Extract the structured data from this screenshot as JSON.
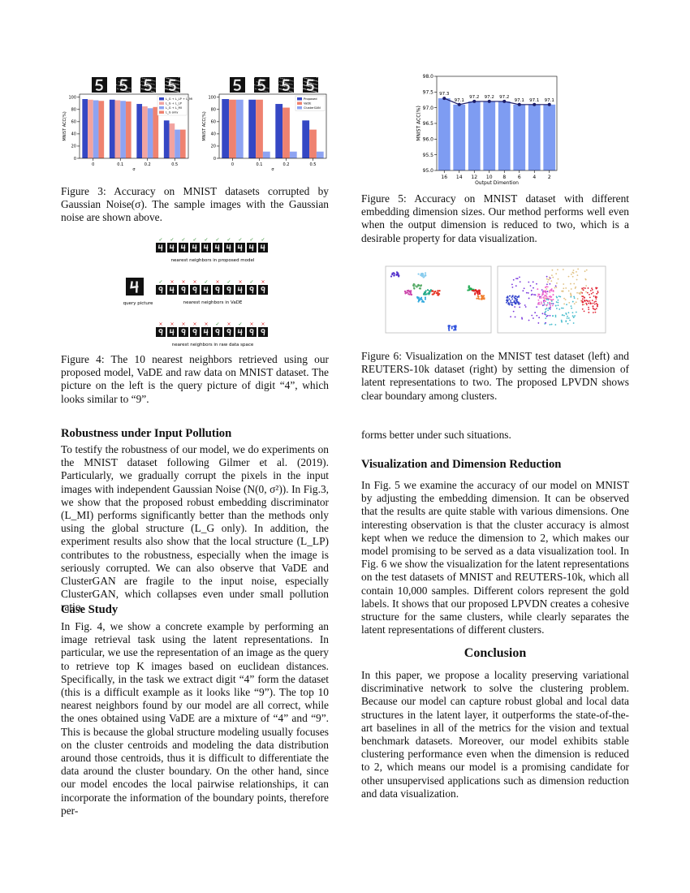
{
  "chart_data": [
    {
      "type": "bar",
      "ylabel": "MNIST ACC(%)",
      "xlabel": "σ",
      "categories": [
        "0",
        "0.1",
        "0.2",
        "0.5"
      ],
      "ylim": [
        0,
        105
      ],
      "yticks": [
        0,
        20,
        40,
        60,
        80,
        100
      ],
      "legend": "upper right",
      "series": [
        {
          "name": "L_G + L_LP + L_MI",
          "color": "#3547c4",
          "values": [
            97,
            96,
            89,
            62
          ]
        },
        {
          "name": "L_G + L_LP",
          "color": "#f2a3a0",
          "values": [
            96,
            95,
            85,
            57
          ]
        },
        {
          "name": "L_G + L_MI",
          "color": "#8ea3f2",
          "values": [
            95,
            94,
            82,
            47
          ]
        },
        {
          "name": "L_G only",
          "color": "#ef8270",
          "values": [
            94,
            93,
            84,
            47
          ]
        }
      ]
    },
    {
      "type": "bar",
      "ylabel": "MNIST ACC(%)",
      "xlabel": "σ",
      "categories": [
        "0",
        "0.1",
        "0.2",
        "0.5"
      ],
      "ylim": [
        0,
        105
      ],
      "yticks": [
        0,
        20,
        40,
        60,
        80,
        100
      ],
      "legend": "upper right",
      "series": [
        {
          "name": "Proposed",
          "color": "#3547c4",
          "values": [
            97,
            96,
            89,
            62
          ]
        },
        {
          "name": "VaDE",
          "color": "#ef8270",
          "values": [
            96,
            96,
            83,
            47
          ]
        },
        {
          "name": "ClusterGAN",
          "color": "#8ea3f2",
          "values": [
            96,
            11,
            11,
            11
          ]
        }
      ]
    },
    {
      "type": "bar",
      "line": true,
      "line_color": "#1a1a66",
      "ylabel": "MNIST ACC(%)",
      "xlabel": "Output Dimention",
      "categories": [
        "16",
        "14",
        "12",
        "10",
        "8",
        "6",
        "4",
        "2"
      ],
      "ylim": [
        95,
        98
      ],
      "yticks": [
        {
          "value": 95,
          "label": "95.0"
        },
        {
          "value": 95.5,
          "label": "95.5"
        },
        {
          "value": 96,
          "label": "96.0"
        },
        {
          "value": 96.5,
          "label": "96.5"
        },
        {
          "value": 97,
          "label": "97.0"
        },
        {
          "value": 97.5,
          "label": "97.5"
        },
        {
          "value": 98,
          "label": "98.0"
        }
      ],
      "series": [
        {
          "name": null,
          "color": "#7e9cf2",
          "values": [
            97.3,
            97.1,
            97.2,
            97.2,
            97.2,
            97.1,
            97.1,
            97.1
          ]
        }
      ]
    }
  ],
  "figure4": {
    "query_label": "query picture",
    "rows": [
      {
        "label": "nearest neighbors in proposed model",
        "marks": [
          "✓",
          "✓",
          "✓",
          "✓",
          "✓",
          "✓",
          "✓",
          "✓",
          "✓",
          "✓"
        ]
      },
      {
        "label": "nearest neighbors in VaDE",
        "marks": [
          "✓",
          "×",
          "×",
          "×",
          "✓",
          "×",
          "✓",
          "×",
          "✓",
          "×"
        ]
      },
      {
        "label": "nearest neighbors in raw data space",
        "marks": [
          "×",
          "×",
          "×",
          "×",
          "×",
          "✓",
          "×",
          "✓",
          "×",
          "×"
        ]
      }
    ]
  },
  "captions": {
    "fig3": "Figure 3: Accuracy on MNIST datasets corrupted by Gaussian Noise(σ). The sample images with the Gaussian noise are shown above.",
    "fig4": "Figure 4: The 10 nearest neighbors retrieved using our proposed model, VaDE and raw data on MNIST dataset. The picture on the left is the query picture of digit “4”, which looks similar to “9”.",
    "fig5": "Figure 5: Accuracy on MNIST dataset with different embedding dimension sizes. Our method performs well even when the output dimension is reduced to two, which is a desirable property for data visualization.",
    "fig6": "Figure 6: Visualization on the MNIST test dataset (left) and REUTERS-10k dataset (right) by setting the dimension of latent representations to two. The proposed LPVDN shows clear boundary among clusters."
  },
  "sections": [
    {
      "heading": "Robustness under Input Pollution",
      "text": "To testify the robustness of our model, we do experiments on the MNIST dataset following Gilmer et al. (2019). Particularly, we gradually corrupt the pixels in the input images with independent Gaussian Noise (N(0, σ²)). In Fig.3, we show that the proposed robust embedding discriminator (L_MI) performs significantly better than the methods only using the global structure (L_G only). In addition, the experiment results also show that the local structure (L_LP) contributes to the robustness, especially when the image is seriously corrupted. We can also observe that VaDE and ClusterGAN are fragile to the input noise, especially ClusterGAN, which collapses even under small pollution ratio."
    },
    {
      "heading": "Case Study",
      "text": "In Fig. 4, we show a concrete example by performing an image retrieval task using the latent representations. In particular, we use the representation of an image as the query to retrieve top K images based on euclidean distances. Specifically, in the task we extract digit “4” form the dataset (this is a difficult example as it looks like “9”). The top 10 nearest neighbors found by our model are all correct, while the ones obtained using VaDE are a mixture of “4” and “9”. This is because the global structure modeling usually focuses on the cluster centroids and modeling the data distribution around those centroids, thus it is difficult to differentiate the data around the cluster boundary. On the other hand, since our model encodes the local pairwise relationships, it can incorporate the information of the boundary points, therefore per-"
    },
    {
      "continuation": "forms better under such situations."
    },
    {
      "heading": "Visualization and Dimension Reduction",
      "text": "In Fig. 5 we examine the accuracy of our model on MNIST by adjusting the embedding dimension. It can be observed that the results are quite stable with various dimensions. One interesting observation is that the cluster accuracy is almost kept when we reduce the dimension to 2, which makes our model promising to be served as a data visualization tool. In Fig. 6 we show the visualization for the latent representations on the test datasets of MNIST and REUTERS-10k, which all contain 10,000 samples. Different colors represent the gold labels. It shows that our proposed LPVDN creates a cohesive structure for the same clusters, while clearly separates the latent representations of different clusters."
    },
    {
      "heading": "Conclusion",
      "text": "In this paper, we propose a locality preserving variational discriminative network to solve the clustering problem. Because our model can capture robust global and local data structures in the latent layer, it outperforms the state-of-the-art baselines in all of the metrics for the vision and textual benchmark datasets. Moreover, our model exhibits stable clustering performance even when the dimension is reduced to 2, which means our model is a promising candidate for other unsupervised applications such as dimension reduction and data visualization."
    }
  ]
}
